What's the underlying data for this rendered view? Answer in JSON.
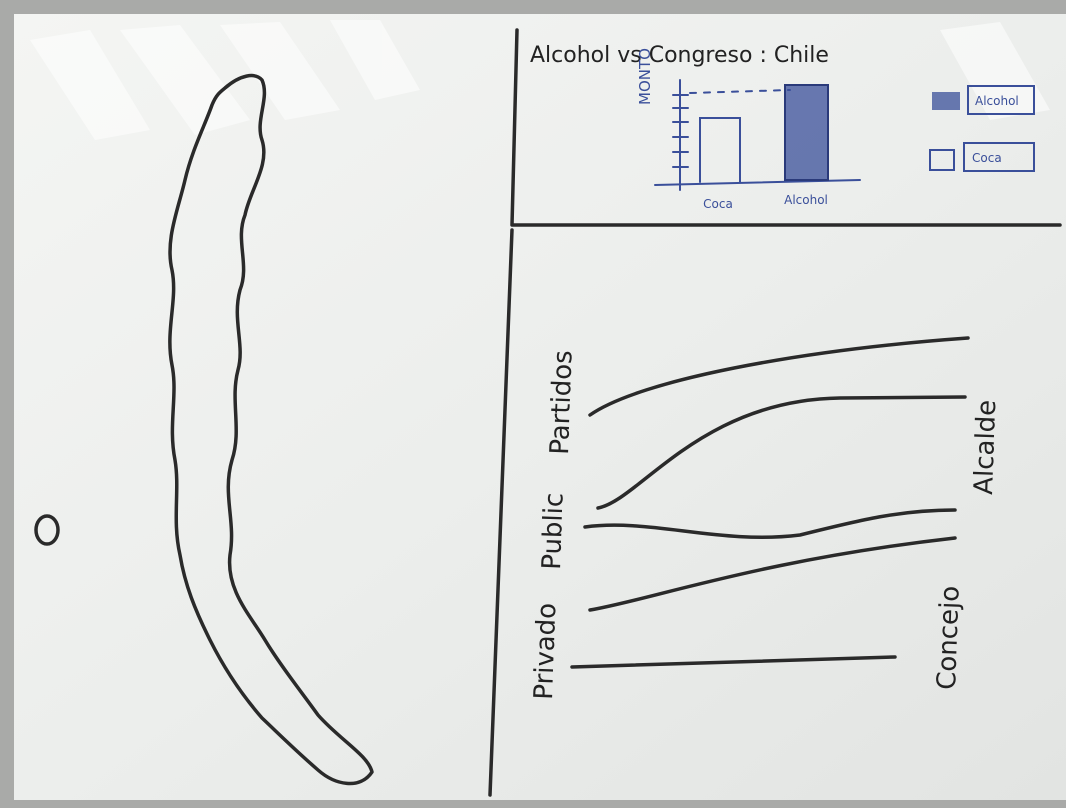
{
  "header": {
    "title": "Alcohol vs Congreso : Chile"
  },
  "bar_sketch": {
    "y_label": "MONTO",
    "categories": [
      "Coca",
      "Alcohol"
    ],
    "legend": [
      "Alcohol",
      "Coca"
    ]
  },
  "flow_sketch": {
    "left_labels": [
      "Privado",
      "Public",
      "Partidos"
    ],
    "right_labels": [
      "Concejo",
      "Alcalde"
    ]
  }
}
